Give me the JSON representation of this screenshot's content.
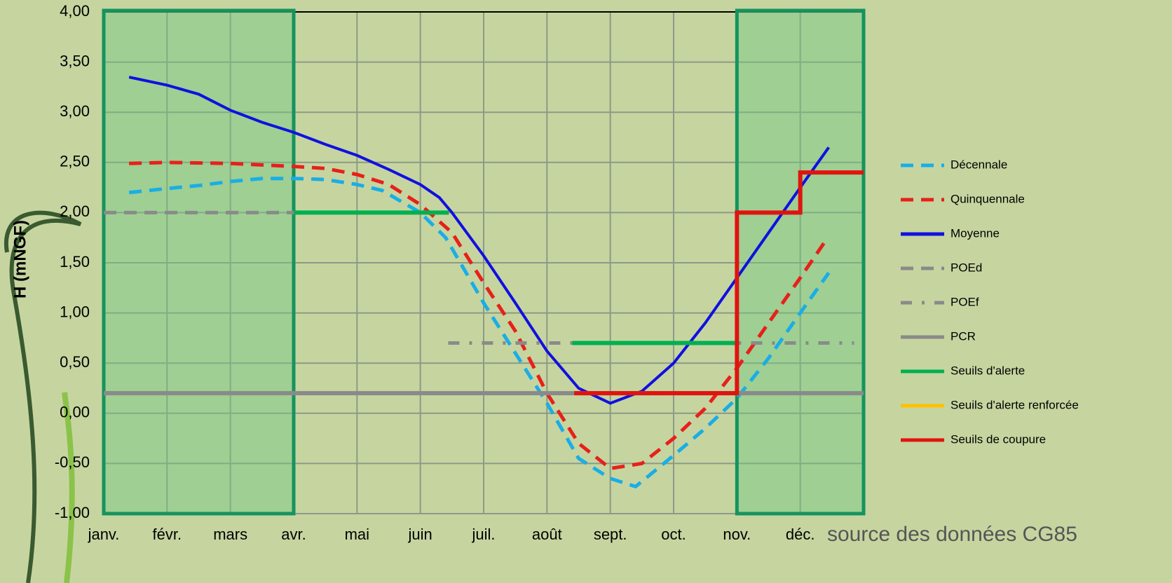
{
  "chart_data": {
    "type": "line",
    "y_label": "H (mNGF)",
    "annotation": "source des données CG85",
    "xlim": [
      0,
      12
    ],
    "xticks": [
      {
        "value": 0,
        "label": "janv."
      },
      {
        "value": 1,
        "label": "févr."
      },
      {
        "value": 2,
        "label": "mars"
      },
      {
        "value": 3,
        "label": "avr."
      },
      {
        "value": 4,
        "label": "mai"
      },
      {
        "value": 5,
        "label": "juin"
      },
      {
        "value": 6,
        "label": "juil."
      },
      {
        "value": 7,
        "label": "août"
      },
      {
        "value": 8,
        "label": "sept."
      },
      {
        "value": 9,
        "label": "oct."
      },
      {
        "value": 10,
        "label": "nov."
      },
      {
        "value": 11,
        "label": "déc."
      }
    ],
    "ylim": [
      -1,
      4
    ],
    "yticks": [
      {
        "value": 4,
        "label": "4,00"
      },
      {
        "value": 3.5,
        "label": "3,50"
      },
      {
        "value": 3,
        "label": "3,00"
      },
      {
        "value": 2.5,
        "label": "2,50"
      },
      {
        "value": 2,
        "label": "2,00"
      },
      {
        "value": 1.5,
        "label": "1,50"
      },
      {
        "value": 1,
        "label": "1,00"
      },
      {
        "value": 0.5,
        "label": "0,50"
      },
      {
        "value": 0,
        "label": "0,00"
      },
      {
        "value": -0.5,
        "label": "-0,50"
      },
      {
        "value": -1,
        "label": "-1,00"
      }
    ],
    "grid": true,
    "legend": "right",
    "shaded_ranges": [
      [
        0,
        3
      ],
      [
        10,
        12
      ]
    ],
    "series": [
      {
        "name": "Décennale",
        "color": "#19aee6",
        "dash": "dashed",
        "x": [
          0.4,
          1,
          1.5,
          2,
          2.5,
          3,
          3.5,
          4,
          4.4,
          5,
          5.4,
          6,
          6.5,
          7,
          7.5,
          8,
          8.4,
          9,
          9.5,
          10,
          10.5,
          11,
          11.45
        ],
        "values": [
          2.2,
          2.24,
          2.27,
          2.31,
          2.34,
          2.34,
          2.33,
          2.28,
          2.22,
          2.0,
          1.75,
          1.1,
          0.6,
          0.1,
          -0.45,
          -0.65,
          -0.73,
          -0.42,
          -0.15,
          0.15,
          0.55,
          1.0,
          1.4
        ]
      },
      {
        "name": "Quinquennale",
        "color": "#e8201a",
        "dash": "dashed",
        "x": [
          0.4,
          1,
          2,
          3,
          3.5,
          4,
          4.5,
          5,
          5.5,
          6,
          6.5,
          7,
          7.5,
          8,
          8.5,
          9,
          9.5,
          10,
          10.5,
          11,
          11.4
        ],
        "values": [
          2.49,
          2.5,
          2.49,
          2.46,
          2.44,
          2.38,
          2.28,
          2.08,
          1.8,
          1.3,
          0.82,
          0.2,
          -0.3,
          -0.55,
          -0.5,
          -0.25,
          0.05,
          0.45,
          0.9,
          1.35,
          1.72
        ]
      },
      {
        "name": "Moyenne",
        "color": "#1010e0",
        "dash": "solid",
        "x": [
          0.4,
          1,
          1.5,
          2,
          2.5,
          3,
          3.5,
          4,
          4.5,
          5,
          5.3,
          5.5,
          6,
          6.5,
          7,
          7.5,
          8,
          8.5,
          9,
          9.5,
          10,
          10.5,
          11,
          11.45
        ],
        "values": [
          3.35,
          3.27,
          3.18,
          3.02,
          2.9,
          2.8,
          2.68,
          2.57,
          2.43,
          2.28,
          2.15,
          2.0,
          1.57,
          1.1,
          0.62,
          0.25,
          0.1,
          0.22,
          0.5,
          0.9,
          1.35,
          1.8,
          2.25,
          2.65
        ]
      },
      {
        "name": "POEd",
        "color": "#8a8a8a",
        "dash": "dashed",
        "x": [
          0,
          3
        ],
        "values": [
          2.0,
          2.0
        ]
      },
      {
        "name": "POEf",
        "color": "#8a8a8a",
        "dash": "dashdot",
        "x": [
          5.44,
          11.85
        ],
        "values": [
          0.7,
          0.7
        ]
      },
      {
        "name": "PCR",
        "color": "#8a8a8a",
        "dash": "solid",
        "x": [
          0,
          12
        ],
        "values": [
          0.2,
          0.2
        ]
      },
      {
        "name": "Seuils d'alerte",
        "color": "#00b050",
        "dash": "solid",
        "x": [
          3,
          5.45,
          6.5,
          7.4,
          10
        ],
        "values": [
          2.0,
          2.0,
          null,
          0.7,
          0.7
        ]
      },
      {
        "name": "Seuils d'alerte renforcée",
        "color": "#ffc000",
        "dash": "solid",
        "x": [],
        "values": []
      },
      {
        "name": "Seuils de coupure",
        "color": "#e0140f",
        "dash": "solid",
        "x": [
          7.43,
          10,
          10,
          11,
          11,
          12
        ],
        "values": [
          0.2,
          0.2,
          2.0,
          2.0,
          2.4,
          2.4
        ]
      }
    ]
  }
}
